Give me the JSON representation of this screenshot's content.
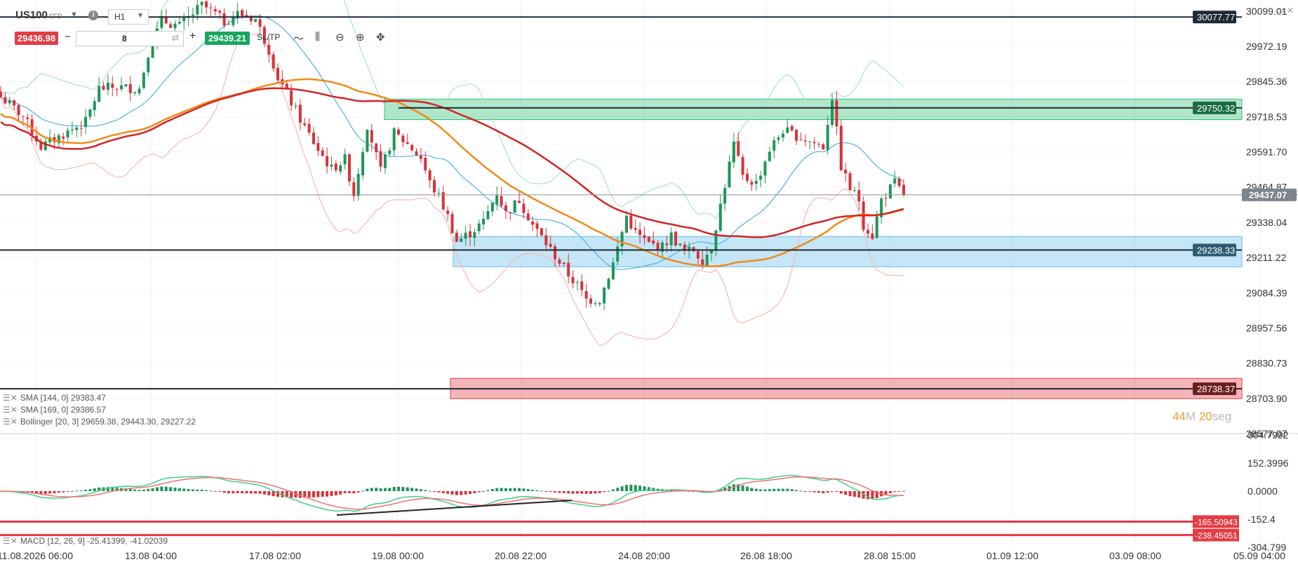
{
  "header": {
    "symbol": "US100",
    "instrument_type": "CFD",
    "timeframe": "H1",
    "sell_price": "29436.98",
    "buy_price": "29439.21",
    "quantity": "8",
    "sltp_label": "SL/TP",
    "minus": "−",
    "plus": "+"
  },
  "timer": {
    "minutes": "44",
    "minutes_unit": "M",
    "seconds": "20",
    "seconds_unit": "seg"
  },
  "indicators": {
    "sma144": "SMA [144, 0]  29383.47",
    "sma169": "SMA [169, 0]  29386.57",
    "bollinger": "Bollinger [20, 3]  29659.38, 29443.30, 29227.22",
    "macd": "MACD [12, 26, 9] -25.41399, -41.02039"
  },
  "colors": {
    "candle_up": "#1e9658",
    "candle_down": "#d9313a",
    "sma144": "#f08a1a",
    "sma169": "#d42424",
    "bollinger_upper": "#a8e6c6",
    "bollinger_mid": "#4bb4e6",
    "bollinger_lower": "#f7b8b8",
    "zone_supply": "#2fbf73",
    "zone_demand": "#67bde8",
    "zone_sell": "#e23c44",
    "line_dark": "#1f2a36"
  },
  "chart_data": {
    "type": "candlestick",
    "symbol": "US100",
    "timeframe": "H1",
    "x_ticks": [
      "11.08.2026 06:00",
      "13.08 04:00",
      "17.08 02:00",
      "19.08 00:00",
      "20.08 22:00",
      "24.08 20:00",
      "26.08 18:00",
      "28.08 15:00",
      "01.09 12:00",
      "03.09 08:00",
      "05.09 04:00"
    ],
    "y_ticks": [
      30099.01,
      29972.19,
      29845.36,
      29718.53,
      29591.7,
      29464.87,
      29338.04,
      29211.22,
      29084.39,
      28957.56,
      28830.73,
      28703.9,
      28577.07
    ],
    "ylim": [
      28577.07,
      30139
    ],
    "current_price": 29437.07,
    "horizontal_lines": [
      30077.77,
      29750.32,
      29238.33,
      28738.37,
      29437.07
    ],
    "zones": [
      {
        "name": "supply",
        "from": 29708,
        "to": 29782
      },
      {
        "name": "demand",
        "from": 29178,
        "to": 29287
      },
      {
        "name": "sell",
        "from": 28703,
        "to": 28776
      }
    ],
    "close_path": [
      [
        0,
        29790
      ],
      [
        5,
        29720
      ],
      [
        9,
        29610
      ],
      [
        14,
        29655
      ],
      [
        19,
        29700
      ],
      [
        22,
        29820
      ],
      [
        26,
        29825
      ],
      [
        31,
        29820
      ],
      [
        33,
        29950
      ],
      [
        36,
        30065
      ],
      [
        40,
        30045
      ],
      [
        45,
        30120
      ],
      [
        48,
        30090
      ],
      [
        50,
        30060
      ],
      [
        53,
        30090
      ],
      [
        57,
        30070
      ],
      [
        60,
        29960
      ],
      [
        62,
        29860
      ],
      [
        65,
        29770
      ],
      [
        68,
        29680
      ],
      [
        71,
        29600
      ],
      [
        74,
        29530
      ],
      [
        77,
        29565
      ],
      [
        79,
        29440
      ],
      [
        82,
        29690
      ],
      [
        85,
        29520
      ],
      [
        88,
        29660
      ],
      [
        91,
        29620
      ],
      [
        94,
        29570
      ],
      [
        96,
        29480
      ],
      [
        98,
        29430
      ],
      [
        100,
        29360
      ],
      [
        102,
        29270
      ],
      [
        105,
        29300
      ],
      [
        108,
        29340
      ],
      [
        111,
        29445
      ],
      [
        113,
        29370
      ],
      [
        116,
        29420
      ],
      [
        119,
        29330
      ],
      [
        123,
        29240
      ],
      [
        127,
        29150
      ],
      [
        129,
        29110
      ],
      [
        131,
        29060
      ],
      [
        134,
        29060
      ],
      [
        137,
        29190
      ],
      [
        140,
        29360
      ],
      [
        142,
        29300
      ],
      [
        145,
        29260
      ],
      [
        148,
        29250
      ],
      [
        150,
        29290
      ],
      [
        153,
        29230
      ],
      [
        155,
        29240
      ],
      [
        157,
        29200
      ],
      [
        159,
        29250
      ],
      [
        161,
        29400
      ],
      [
        164,
        29620
      ],
      [
        166,
        29500
      ],
      [
        169,
        29480
      ],
      [
        172,
        29600
      ],
      [
        175,
        29670
      ],
      [
        178,
        29650
      ],
      [
        181,
        29630
      ],
      [
        184,
        29610
      ],
      [
        186,
        29790
      ],
      [
        188,
        29540
      ],
      [
        190,
        29460
      ],
      [
        192,
        29420
      ],
      [
        193,
        29330
      ],
      [
        195,
        29290
      ],
      [
        197,
        29420
      ],
      [
        200,
        29480
      ],
      [
        202,
        29437
      ]
    ],
    "series": [
      {
        "name": "SMA [144, 0]",
        "last": 29383.47
      },
      {
        "name": "SMA [169, 0]",
        "last": 29386.57
      },
      {
        "name": "Bollinger [20, 3]",
        "values": [
          29659.38,
          29443.3,
          29227.22
        ]
      }
    ],
    "macd": {
      "name": "MACD [12, 26, 9]",
      "macd": -25.41399,
      "signal": -41.02039,
      "y_ticks": [
        304.7992,
        152.3996,
        0.0,
        -152.4,
        -304.799
      ],
      "horizontal_lines": [
        -165.50943,
        -238.45051
      ]
    }
  }
}
